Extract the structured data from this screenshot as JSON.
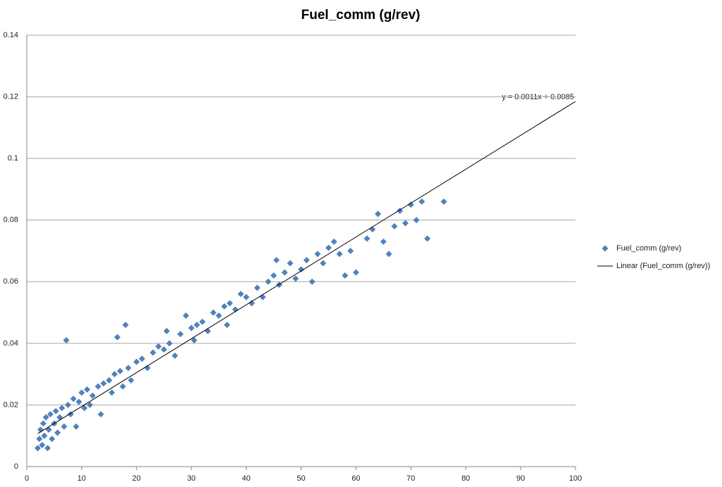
{
  "chart_data": {
    "type": "scatter",
    "title": "Fuel_comm (g/rev)",
    "annotation": "y = 0.0011x + 0.0085",
    "xlim": [
      0,
      100
    ],
    "xticks": [
      0,
      10,
      20,
      30,
      40,
      50,
      60,
      70,
      80,
      90,
      100
    ],
    "ylim": [
      0,
      0.14
    ],
    "yticks": [
      0,
      0.02,
      0.04,
      0.06,
      0.08,
      0.1,
      0.12,
      0.14
    ],
    "grid": true,
    "legend": "right",
    "series": [
      {
        "name": "Fuel_comm (g/rev)",
        "color": "#4f81bd",
        "marker": "diamond",
        "x": [
          2,
          2.3,
          2.5,
          2.8,
          3,
          3.2,
          3.5,
          3.8,
          4,
          4.3,
          4.6,
          5,
          5.3,
          5.6,
          6,
          6.4,
          6.8,
          7.2,
          7.5,
          8,
          8.5,
          9,
          9.5,
          10,
          10.5,
          11,
          11.5,
          12,
          13,
          13.5,
          14,
          15,
          15.5,
          16,
          16.5,
          17,
          17.5,
          18,
          18.5,
          19,
          20,
          21,
          22,
          23,
          24,
          25,
          25.5,
          26,
          27,
          28,
          29,
          30,
          30.5,
          31,
          32,
          33,
          34,
          35,
          36,
          36.5,
          37,
          38,
          39,
          40,
          41,
          42,
          43,
          44,
          45,
          45.5,
          46,
          47,
          48,
          49,
          50,
          51,
          52,
          53,
          54,
          55,
          56,
          57,
          58,
          59,
          60,
          62,
          63,
          64,
          65,
          66,
          67,
          68,
          69,
          70,
          71,
          72,
          73,
          76
        ],
        "values": [
          0.006,
          0.009,
          0.012,
          0.007,
          0.014,
          0.01,
          0.016,
          0.006,
          0.012,
          0.017,
          0.009,
          0.014,
          0.018,
          0.011,
          0.016,
          0.019,
          0.013,
          0.041,
          0.02,
          0.017,
          0.022,
          0.013,
          0.021,
          0.024,
          0.019,
          0.025,
          0.02,
          0.023,
          0.026,
          0.017,
          0.027,
          0.028,
          0.024,
          0.03,
          0.042,
          0.031,
          0.026,
          0.046,
          0.032,
          0.028,
          0.034,
          0.035,
          0.032,
          0.037,
          0.039,
          0.038,
          0.044,
          0.04,
          0.036,
          0.043,
          0.049,
          0.045,
          0.041,
          0.046,
          0.047,
          0.044,
          0.05,
          0.049,
          0.052,
          0.046,
          0.053,
          0.051,
          0.056,
          0.055,
          0.053,
          0.058,
          0.055,
          0.06,
          0.062,
          0.067,
          0.059,
          0.063,
          0.066,
          0.061,
          0.064,
          0.067,
          0.06,
          0.069,
          0.066,
          0.071,
          0.073,
          0.069,
          0.062,
          0.07,
          0.063,
          0.074,
          0.077,
          0.082,
          0.073,
          0.069,
          0.078,
          0.083,
          0.079,
          0.085,
          0.08,
          0.086,
          0.074,
          0.086
        ]
      },
      {
        "name": "Linear (Fuel_comm (g/rev))",
        "color": "#000000",
        "marker": "line",
        "x": [
          2,
          100
        ],
        "values": [
          0.0107,
          0.1185
        ]
      }
    ]
  }
}
